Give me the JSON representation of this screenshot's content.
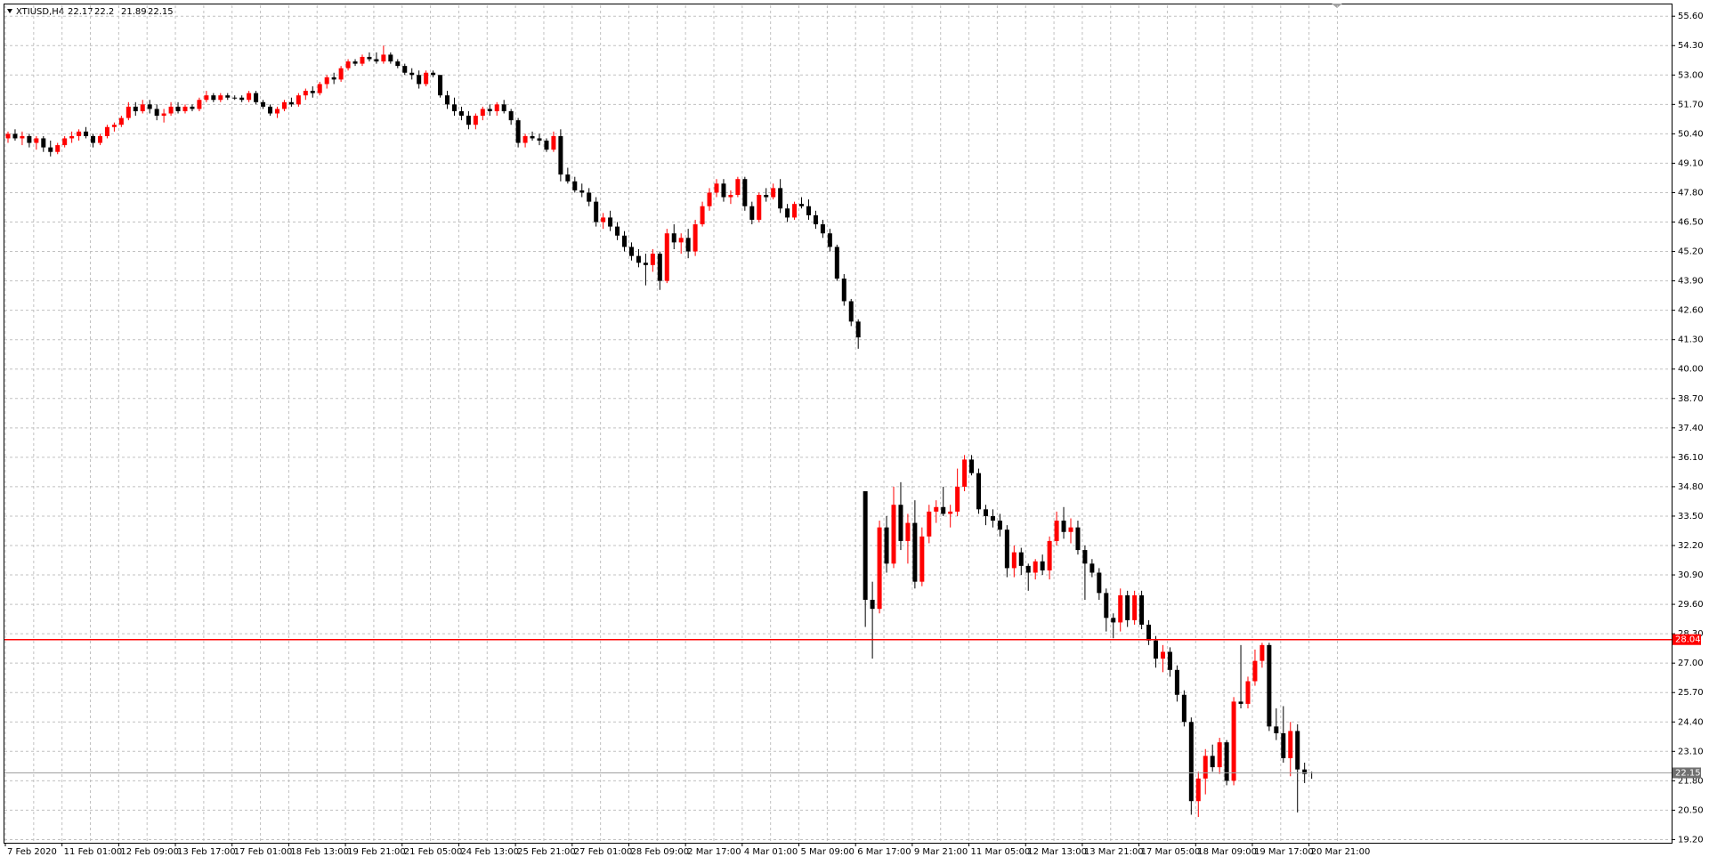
{
  "chart_data": {
    "type": "candlestick",
    "title": "XTIUSD,H4",
    "up_color": "#ff0000",
    "down_color": "#000000",
    "grid": true,
    "ylim": [
      19.06,
      56.08
    ],
    "yticks": [
      {
        "value": 55.6,
        "label": "55.60"
      },
      {
        "value": 54.3,
        "label": "54.30"
      },
      {
        "value": 53.0,
        "label": "53.00"
      },
      {
        "value": 51.7,
        "label": "51.70"
      },
      {
        "value": 50.4,
        "label": "50.40"
      },
      {
        "value": 49.1,
        "label": "49.10"
      },
      {
        "value": 47.8,
        "label": "47.80"
      },
      {
        "value": 46.5,
        "label": "46.50"
      },
      {
        "value": 45.2,
        "label": "45.20"
      },
      {
        "value": 43.9,
        "label": "43.90"
      },
      {
        "value": 42.6,
        "label": "42.60"
      },
      {
        "value": 41.3,
        "label": "41.30"
      },
      {
        "value": 40.0,
        "label": "40.00"
      },
      {
        "value": 38.7,
        "label": "38.70"
      },
      {
        "value": 37.4,
        "label": "37.40"
      },
      {
        "value": 36.1,
        "label": "36.10"
      },
      {
        "value": 34.8,
        "label": "34.80"
      },
      {
        "value": 33.5,
        "label": "33.50"
      },
      {
        "value": 32.2,
        "label": "32.20"
      },
      {
        "value": 30.9,
        "label": "30.90"
      },
      {
        "value": 29.6,
        "label": "29.60"
      },
      {
        "value": 28.3,
        "label": "28.30"
      },
      {
        "value": 27.0,
        "label": "27.00"
      },
      {
        "value": 25.7,
        "label": "25.70"
      },
      {
        "value": 24.4,
        "label": "24.40"
      },
      {
        "value": 23.1,
        "label": "23.10"
      },
      {
        "value": 21.8,
        "label": "21.80"
      },
      {
        "value": 20.5,
        "label": "20.50"
      },
      {
        "value": 19.2,
        "label": "19.20"
      }
    ],
    "categories": [
      "7 Feb 2020",
      "11 Feb 01:00",
      "12 Feb 09:00",
      "13 Feb 17:00",
      "17 Feb 01:00",
      "18 Feb 13:00",
      "19 Feb 21:00",
      "21 Feb 05:00",
      "24 Feb 13:00",
      "25 Feb 21:00",
      "27 Feb 01:00",
      "28 Feb 09:00",
      "2 Mar 17:00",
      "4 Mar 01:00",
      "5 Mar 09:00",
      "6 Mar 17:00",
      "9 Mar 21:00",
      "11 Mar 05:00",
      "12 Mar 13:00",
      "13 Mar 21:00",
      "17 Mar 05:00",
      "18 Mar 09:00",
      "19 Mar 17:00",
      "20 Mar 21:00"
    ],
    "hline": {
      "value": 28.04,
      "color": "#ff0000"
    },
    "candles": [
      [
        50.2,
        50.5,
        50.0,
        50.4
      ],
      [
        50.4,
        50.6,
        50.1,
        50.2
      ],
      [
        50.2,
        50.5,
        49.9,
        50.3
      ],
      [
        50.3,
        50.4,
        49.8,
        50.0
      ],
      [
        50.0,
        50.3,
        49.7,
        50.2
      ],
      [
        50.2,
        50.3,
        49.6,
        49.8
      ],
      [
        49.8,
        50.1,
        49.4,
        49.6
      ],
      [
        49.6,
        50.0,
        49.5,
        49.9
      ],
      [
        49.9,
        50.3,
        49.8,
        50.2
      ],
      [
        50.2,
        50.5,
        50.0,
        50.3
      ],
      [
        50.3,
        50.6,
        50.1,
        50.5
      ],
      [
        50.5,
        50.7,
        50.2,
        50.3
      ],
      [
        50.3,
        50.4,
        49.8,
        50.0
      ],
      [
        50.0,
        50.4,
        49.9,
        50.3
      ],
      [
        50.3,
        50.8,
        50.2,
        50.7
      ],
      [
        50.7,
        50.9,
        50.5,
        50.8
      ],
      [
        50.8,
        51.2,
        50.7,
        51.1
      ],
      [
        51.1,
        51.8,
        51.0,
        51.6
      ],
      [
        51.6,
        51.8,
        51.2,
        51.4
      ],
      [
        51.4,
        51.9,
        51.3,
        51.7
      ],
      [
        51.7,
        51.9,
        51.3,
        51.5
      ],
      [
        51.5,
        51.7,
        51.0,
        51.2
      ],
      [
        51.2,
        51.5,
        50.9,
        51.3
      ],
      [
        51.3,
        51.8,
        51.2,
        51.6
      ],
      [
        51.6,
        51.8,
        51.3,
        51.4
      ],
      [
        51.4,
        51.7,
        51.3,
        51.6
      ],
      [
        51.6,
        51.7,
        51.4,
        51.5
      ],
      [
        51.5,
        52.0,
        51.4,
        51.9
      ],
      [
        51.9,
        52.3,
        51.8,
        52.1
      ],
      [
        52.1,
        52.2,
        51.8,
        51.9
      ],
      [
        51.9,
        52.2,
        51.8,
        52.1
      ],
      [
        52.1,
        52.2,
        51.9,
        52.0
      ],
      [
        52.0,
        52.1,
        51.9,
        52.0
      ],
      [
        52.0,
        52.1,
        51.8,
        51.9
      ],
      [
        51.9,
        52.3,
        51.8,
        52.2
      ],
      [
        52.2,
        52.3,
        51.7,
        51.8
      ],
      [
        51.8,
        51.9,
        51.5,
        51.6
      ],
      [
        51.6,
        51.7,
        51.2,
        51.3
      ],
      [
        51.3,
        51.6,
        51.1,
        51.5
      ],
      [
        51.5,
        51.9,
        51.4,
        51.8
      ],
      [
        51.8,
        52.0,
        51.6,
        51.7
      ],
      [
        51.7,
        52.2,
        51.6,
        52.1
      ],
      [
        52.1,
        52.4,
        51.9,
        52.3
      ],
      [
        52.3,
        52.5,
        52.0,
        52.2
      ],
      [
        52.2,
        52.7,
        52.1,
        52.6
      ],
      [
        52.6,
        53.0,
        52.4,
        52.9
      ],
      [
        52.9,
        53.1,
        52.6,
        52.8
      ],
      [
        52.8,
        53.4,
        52.7,
        53.3
      ],
      [
        53.3,
        53.7,
        53.2,
        53.6
      ],
      [
        53.6,
        53.7,
        53.4,
        53.5
      ],
      [
        53.5,
        53.9,
        53.4,
        53.8
      ],
      [
        53.8,
        54.0,
        53.6,
        53.7
      ],
      [
        53.7,
        54.0,
        53.5,
        53.6
      ],
      [
        53.6,
        54.3,
        53.5,
        53.9
      ],
      [
        53.9,
        54.0,
        53.5,
        53.6
      ],
      [
        53.6,
        53.7,
        53.3,
        53.4
      ],
      [
        53.4,
        53.5,
        53.0,
        53.1
      ],
      [
        53.1,
        53.3,
        52.8,
        53.0
      ],
      [
        53.0,
        53.2,
        52.4,
        52.6
      ],
      [
        52.6,
        53.2,
        52.5,
        53.1
      ],
      [
        53.1,
        53.2,
        52.9,
        53.0
      ],
      [
        53.0,
        53.0,
        52.0,
        52.1
      ],
      [
        52.1,
        52.3,
        51.5,
        51.7
      ],
      [
        51.7,
        52.0,
        51.2,
        51.4
      ],
      [
        51.4,
        51.6,
        51.0,
        51.2
      ],
      [
        51.2,
        51.4,
        50.6,
        50.8
      ],
      [
        50.8,
        51.3,
        50.6,
        51.2
      ],
      [
        51.2,
        51.6,
        51.0,
        51.5
      ],
      [
        51.5,
        51.7,
        51.2,
        51.4
      ],
      [
        51.4,
        51.8,
        51.2,
        51.7
      ],
      [
        51.7,
        51.9,
        51.3,
        51.4
      ],
      [
        51.4,
        51.5,
        50.8,
        51.0
      ],
      [
        51.0,
        51.1,
        49.8,
        50.0
      ],
      [
        50.0,
        50.4,
        49.8,
        50.3
      ],
      [
        50.3,
        50.5,
        50.1,
        50.2
      ],
      [
        50.2,
        50.4,
        49.9,
        50.1
      ],
      [
        50.1,
        50.2,
        49.6,
        49.7
      ],
      [
        49.7,
        50.5,
        49.6,
        50.3
      ],
      [
        50.3,
        50.6,
        48.3,
        48.6
      ],
      [
        48.6,
        48.9,
        48.2,
        48.3
      ],
      [
        48.3,
        48.5,
        47.8,
        47.9
      ],
      [
        47.9,
        48.2,
        47.6,
        47.8
      ],
      [
        47.8,
        48.0,
        47.2,
        47.4
      ],
      [
        47.4,
        47.6,
        46.3,
        46.5
      ],
      [
        46.5,
        46.9,
        46.2,
        46.7
      ],
      [
        46.7,
        47.0,
        46.1,
        46.3
      ],
      [
        46.3,
        46.5,
        45.7,
        45.9
      ],
      [
        45.9,
        46.1,
        45.2,
        45.4
      ],
      [
        45.4,
        45.6,
        44.8,
        45.0
      ],
      [
        45.0,
        45.3,
        44.5,
        44.7
      ],
      [
        44.7,
        45.1,
        43.7,
        44.6
      ],
      [
        44.6,
        45.3,
        44.3,
        45.1
      ],
      [
        45.1,
        45.2,
        43.5,
        43.9
      ],
      [
        43.9,
        46.2,
        43.8,
        46.0
      ],
      [
        46.0,
        46.4,
        45.3,
        45.6
      ],
      [
        45.6,
        46.0,
        45.1,
        45.8
      ],
      [
        45.8,
        46.2,
        44.9,
        45.2
      ],
      [
        45.2,
        46.6,
        45.0,
        46.4
      ],
      [
        46.4,
        47.4,
        46.3,
        47.2
      ],
      [
        47.2,
        48.0,
        47.0,
        47.8
      ],
      [
        47.8,
        48.4,
        47.6,
        48.2
      ],
      [
        48.2,
        48.4,
        47.4,
        47.6
      ],
      [
        47.6,
        47.9,
        47.3,
        47.7
      ],
      [
        47.7,
        48.5,
        47.6,
        48.4
      ],
      [
        48.4,
        48.5,
        47.0,
        47.2
      ],
      [
        47.2,
        47.4,
        46.4,
        46.6
      ],
      [
        46.6,
        47.8,
        46.5,
        47.7
      ],
      [
        47.7,
        48.0,
        47.4,
        47.6
      ],
      [
        47.6,
        48.2,
        47.5,
        48.0
      ],
      [
        48.0,
        48.4,
        46.9,
        47.1
      ],
      [
        47.1,
        47.3,
        46.5,
        46.7
      ],
      [
        46.7,
        47.4,
        46.6,
        47.3
      ],
      [
        47.3,
        47.6,
        47.1,
        47.2
      ],
      [
        47.2,
        47.5,
        46.6,
        46.8
      ],
      [
        46.8,
        47.0,
        46.2,
        46.4
      ],
      [
        46.4,
        46.6,
        45.8,
        46.0
      ],
      [
        46.0,
        46.2,
        45.2,
        45.4
      ],
      [
        45.4,
        45.5,
        43.9,
        44.0
      ],
      [
        44.0,
        44.2,
        42.8,
        43.0
      ],
      [
        43.0,
        43.1,
        41.9,
        42.1
      ],
      [
        42.1,
        42.2,
        40.9,
        41.4
      ],
      [
        34.6,
        34.6,
        28.6,
        29.8
      ],
      [
        29.8,
        30.6,
        27.2,
        29.4
      ],
      [
        29.4,
        33.3,
        29.2,
        33.0
      ],
      [
        33.0,
        33.5,
        31.0,
        31.4
      ],
      [
        31.4,
        34.8,
        31.2,
        34.0
      ],
      [
        34.0,
        35.0,
        32.0,
        32.4
      ],
      [
        32.4,
        33.6,
        31.4,
        33.2
      ],
      [
        33.2,
        34.2,
        30.3,
        30.6
      ],
      [
        30.6,
        33.0,
        30.4,
        32.6
      ],
      [
        32.6,
        34.0,
        32.3,
        33.7
      ],
      [
        33.7,
        34.2,
        33.2,
        33.9
      ],
      [
        33.9,
        34.8,
        33.5,
        33.6
      ],
      [
        33.6,
        34.0,
        33.0,
        33.7
      ],
      [
        33.7,
        35.6,
        33.5,
        34.8
      ],
      [
        34.8,
        36.2,
        34.6,
        36.0
      ],
      [
        36.0,
        36.2,
        35.3,
        35.4
      ],
      [
        35.4,
        35.6,
        33.6,
        33.8
      ],
      [
        33.8,
        34.0,
        33.1,
        33.5
      ],
      [
        33.5,
        33.8,
        33.0,
        33.3
      ],
      [
        33.3,
        33.6,
        32.6,
        32.9
      ],
      [
        32.9,
        33.1,
        30.8,
        31.2
      ],
      [
        31.2,
        32.2,
        30.8,
        31.9
      ],
      [
        31.9,
        32.1,
        30.9,
        31.3
      ],
      [
        31.3,
        31.4,
        30.2,
        31.0
      ],
      [
        31.0,
        31.6,
        30.7,
        31.5
      ],
      [
        31.5,
        31.8,
        30.9,
        31.1
      ],
      [
        31.1,
        32.6,
        30.7,
        32.4
      ],
      [
        32.4,
        33.7,
        32.2,
        33.3
      ],
      [
        33.3,
        33.9,
        32.5,
        32.8
      ],
      [
        32.8,
        33.4,
        32.3,
        33.0
      ],
      [
        33.0,
        33.3,
        31.8,
        32.0
      ],
      [
        32.0,
        32.2,
        29.8,
        31.4
      ],
      [
        31.4,
        31.6,
        30.8,
        31.0
      ],
      [
        31.0,
        31.2,
        29.8,
        30.1
      ],
      [
        30.1,
        30.3,
        28.4,
        29.0
      ],
      [
        29.0,
        29.2,
        28.1,
        28.8
      ],
      [
        28.8,
        30.3,
        28.4,
        30.0
      ],
      [
        30.0,
        30.2,
        28.6,
        28.9
      ],
      [
        28.9,
        30.2,
        28.7,
        30.0
      ],
      [
        30.0,
        30.2,
        28.5,
        28.7
      ],
      [
        28.7,
        28.9,
        27.8,
        28.0
      ],
      [
        28.0,
        28.2,
        26.8,
        27.2
      ],
      [
        27.2,
        27.8,
        26.6,
        27.5
      ],
      [
        27.5,
        27.7,
        26.4,
        26.7
      ],
      [
        26.7,
        26.9,
        25.3,
        25.6
      ],
      [
        25.6,
        25.8,
        24.2,
        24.4
      ],
      [
        24.4,
        24.6,
        20.3,
        20.9
      ],
      [
        20.9,
        22.2,
        20.2,
        21.9
      ],
      [
        21.9,
        23.2,
        21.2,
        22.9
      ],
      [
        22.9,
        23.4,
        22.2,
        22.4
      ],
      [
        22.4,
        23.7,
        22.1,
        23.5
      ],
      [
        23.5,
        23.6,
        21.6,
        21.8
      ],
      [
        21.8,
        25.5,
        21.6,
        25.3
      ],
      [
        25.3,
        27.8,
        25.0,
        25.2
      ],
      [
        25.2,
        26.4,
        25.0,
        26.2
      ],
      [
        26.2,
        27.6,
        26.0,
        27.1
      ],
      [
        27.1,
        27.9,
        26.8,
        27.8
      ],
      [
        27.8,
        27.9,
        24.0,
        24.2
      ],
      [
        24.2,
        25.0,
        23.6,
        23.9
      ],
      [
        23.9,
        25.1,
        22.6,
        22.8
      ],
      [
        22.8,
        24.4,
        22.0,
        24.0
      ],
      [
        24.0,
        24.3,
        20.4,
        22.3
      ],
      [
        22.3,
        22.6,
        21.7,
        22.1
      ],
      [
        22.17,
        22.2,
        21.89,
        22.15
      ]
    ]
  }
}
